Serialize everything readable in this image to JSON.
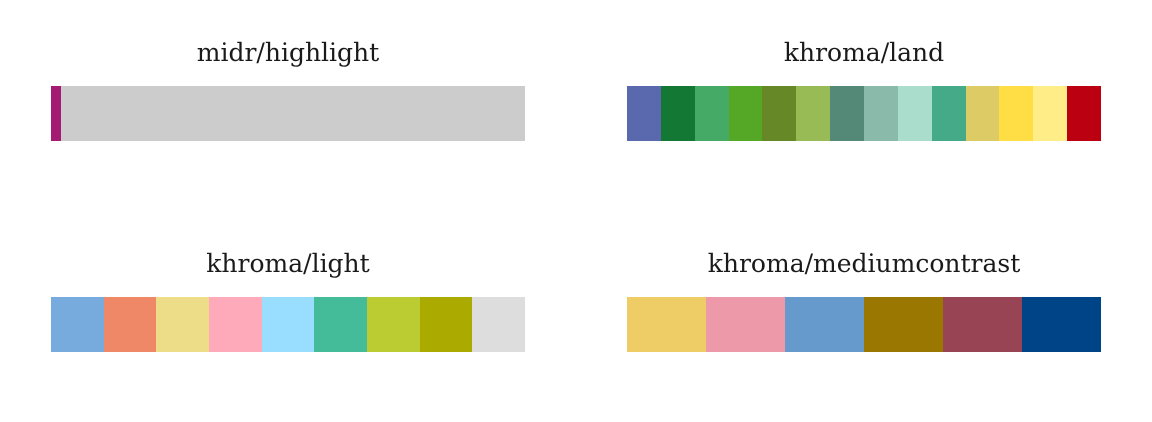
{
  "chart_data": [
    {
      "type": "palette",
      "title": "midr/highlight",
      "colors": [
        "#A31B72",
        "#CCCCCC"
      ],
      "weights": [
        1,
        45
      ]
    },
    {
      "type": "palette",
      "title": "khroma/land",
      "colors": [
        "#5A68AD",
        "#127834",
        "#45AA66",
        "#54A825",
        "#668826",
        "#98BB55",
        "#548977",
        "#8ABBAA",
        "#AADDCC",
        "#44AA88",
        "#DDCC66",
        "#FFDD44",
        "#FFEE88",
        "#BB0011"
      ],
      "weights": [
        1,
        1,
        1,
        1,
        1,
        1,
        1,
        1,
        1,
        1,
        1,
        1,
        1,
        1
      ]
    },
    {
      "type": "palette",
      "title": "khroma/light",
      "colors": [
        "#77AADD",
        "#EE8866",
        "#EEDD88",
        "#FFAABB",
        "#99DDFF",
        "#44BB99",
        "#BBCC33",
        "#AAAA00",
        "#DDDDDD"
      ],
      "weights": [
        1,
        1,
        1,
        1,
        1,
        1,
        1,
        1,
        1
      ]
    },
    {
      "type": "palette",
      "title": "khroma/mediumcontrast",
      "colors": [
        "#EECC66",
        "#EE99AA",
        "#6699CC",
        "#997700",
        "#994455",
        "#004488"
      ],
      "weights": [
        1,
        1,
        1,
        1,
        1,
        1
      ]
    }
  ]
}
